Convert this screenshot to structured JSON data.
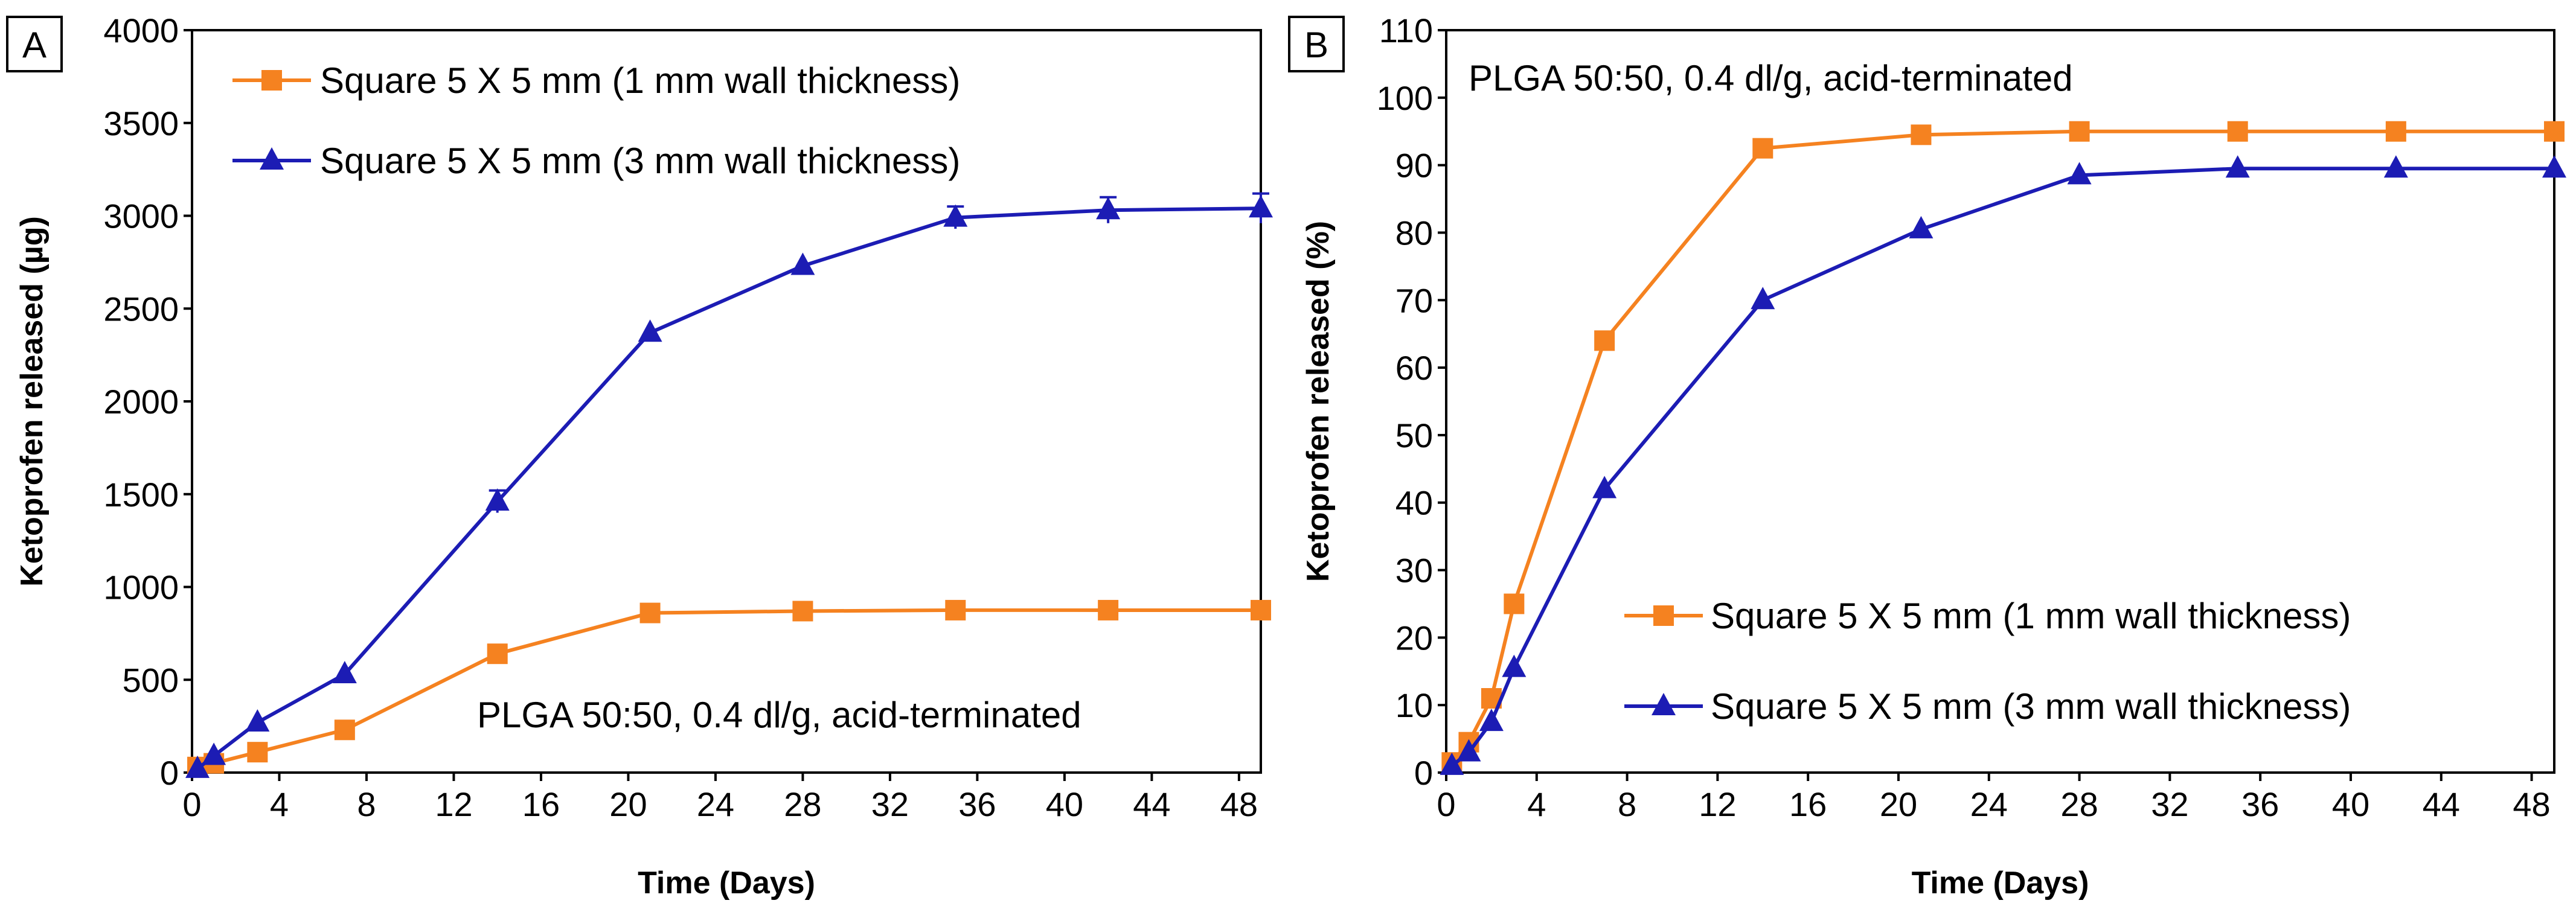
{
  "colors": {
    "orange": "#f58220",
    "blue": "#1c1cb4",
    "axis": "#000000"
  },
  "chart_data": [
    {
      "type": "line",
      "panel_label": "A",
      "title": "",
      "xlabel": "Time (Days)",
      "ylabel": "Ketoprofen released (µg)",
      "xlim": [
        0,
        49
      ],
      "ylim": [
        0,
        4000
      ],
      "xticks": [
        0,
        4,
        8,
        12,
        16,
        20,
        24,
        28,
        32,
        36,
        40,
        44,
        48
      ],
      "yticks": [
        0,
        500,
        1000,
        1500,
        2000,
        2500,
        3000,
        3500,
        4000
      ],
      "legend_position": "top-left",
      "annotation": "PLGA 50:50, 0.4 dl/g, acid-terminated",
      "series": [
        {
          "name": "Square 5 X 5 mm (1 mm wall thickness)",
          "color": "orange",
          "marker": "square",
          "x": [
            0.25,
            1,
            3,
            7,
            14,
            21,
            28,
            35,
            42,
            49
          ],
          "y": [
            30,
            50,
            110,
            230,
            640,
            860,
            870,
            875,
            875,
            875
          ]
        },
        {
          "name": "Square 5 X 5 mm (3 mm wall thickness)",
          "color": "blue",
          "marker": "triangle",
          "x": [
            0.25,
            1,
            3,
            7,
            14,
            21,
            28,
            35,
            42,
            49
          ],
          "y": [
            20,
            90,
            270,
            530,
            1460,
            2370,
            2730,
            2990,
            3030,
            3040
          ],
          "error": [
            0,
            0,
            0,
            0,
            60,
            0,
            0,
            60,
            70,
            80
          ]
        }
      ]
    },
    {
      "type": "line",
      "panel_label": "B",
      "title": "",
      "xlabel": "Time (Days)",
      "ylabel": "Ketoprofen released (%)",
      "xlim": [
        0,
        49
      ],
      "ylim": [
        0,
        110
      ],
      "xticks": [
        0,
        4,
        8,
        12,
        16,
        20,
        24,
        28,
        32,
        36,
        40,
        44,
        48
      ],
      "yticks": [
        0,
        10,
        20,
        30,
        40,
        50,
        60,
        70,
        80,
        90,
        100,
        110
      ],
      "legend_position": "bottom-right",
      "annotation": "PLGA 50:50, 0.4 dl/g, acid-terminated",
      "series": [
        {
          "name": "Square 5 X 5 mm (1 mm wall thickness)",
          "color": "orange",
          "marker": "square",
          "x": [
            0.25,
            1,
            2,
            3,
            7,
            14,
            21,
            28,
            35,
            42,
            49
          ],
          "y": [
            1.5,
            4.5,
            11,
            25,
            64,
            92.5,
            94.5,
            95,
            95,
            95,
            95
          ]
        },
        {
          "name": "Square 5 X 5 mm (3 mm wall thickness)",
          "color": "blue",
          "marker": "triangle",
          "x": [
            0.25,
            1,
            2,
            3,
            7,
            14,
            21,
            28,
            35,
            42,
            49
          ],
          "y": [
            1,
            3,
            7.5,
            15.5,
            42,
            70,
            80.5,
            88.5,
            89.5,
            89.5,
            89.5
          ]
        }
      ]
    }
  ]
}
